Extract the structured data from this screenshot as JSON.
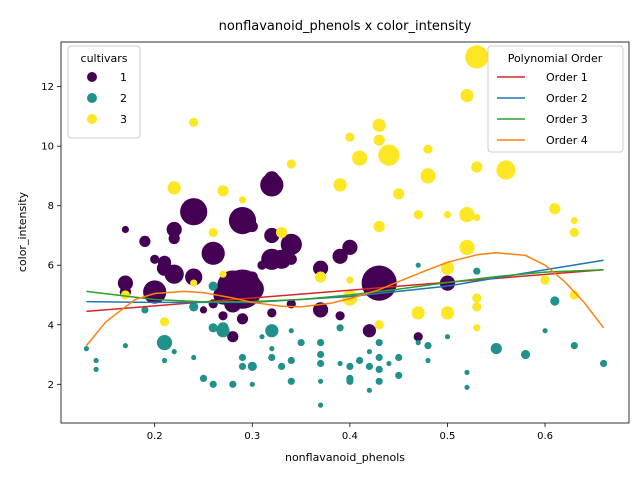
{
  "chart_data": {
    "type": "scatter",
    "title": "nonflavanoid_phenols x color_intensity",
    "xlabel": "nonflavanoid_phenols",
    "ylabel": "color_intensity",
    "xlim": [
      0.104,
      0.686
    ],
    "ylim": [
      0.7,
      13.5
    ],
    "x_ticks": [
      0.2,
      0.3,
      0.4,
      0.5,
      0.6
    ],
    "y_ticks": [
      2,
      4,
      6,
      8,
      10,
      12
    ],
    "grid": false,
    "size_encodes": "point magnitude",
    "cultivar_legend": {
      "title": "cultivars",
      "placement": "top-left",
      "entries": [
        {
          "label": "1",
          "color": "#440154"
        },
        {
          "label": "2",
          "color": "#21918c"
        },
        {
          "label": "3",
          "color": "#fde725"
        }
      ]
    },
    "poly_legend": {
      "title": "Polynomial Order",
      "placement": "top-right",
      "entries": [
        {
          "label": "Order 1",
          "color": "#d62728"
        },
        {
          "label": "Order 2",
          "color": "#1f77b4"
        },
        {
          "label": "Order 3",
          "color": "#2ca02c"
        },
        {
          "label": "Order 4",
          "color": "#ff7f0e"
        }
      ]
    },
    "series": [
      {
        "cultivar": "1",
        "color": "#440154",
        "points": [
          [
            0.17,
            7.2,
            2
          ],
          [
            0.19,
            6.8,
            4
          ],
          [
            0.17,
            5.4,
            6
          ],
          [
            0.17,
            5.1,
            4
          ],
          [
            0.2,
            5.1,
            10
          ],
          [
            0.2,
            6.2,
            3
          ],
          [
            0.21,
            6.1,
            5
          ],
          [
            0.21,
            5.9,
            6
          ],
          [
            0.22,
            5.7,
            8
          ],
          [
            0.22,
            7.2,
            6
          ],
          [
            0.22,
            6.9,
            4
          ],
          [
            0.24,
            7.8,
            12
          ],
          [
            0.24,
            5.6,
            7
          ],
          [
            0.25,
            4.5,
            2
          ],
          [
            0.26,
            6.4,
            10
          ],
          [
            0.26,
            4.7,
            3
          ],
          [
            0.27,
            4.3,
            3
          ],
          [
            0.27,
            5.0,
            8
          ],
          [
            0.28,
            4.7,
            7
          ],
          [
            0.28,
            3.6,
            4
          ],
          [
            0.28,
            5.3,
            14
          ],
          [
            0.29,
            7.5,
            12
          ],
          [
            0.29,
            5.5,
            6
          ],
          [
            0.29,
            5.2,
            18
          ],
          [
            0.3,
            5.2,
            10
          ],
          [
            0.3,
            5.6,
            4
          ],
          [
            0.29,
            4.2,
            4
          ],
          [
            0.3,
            7.3,
            4
          ],
          [
            0.31,
            6.0,
            3
          ],
          [
            0.32,
            8.7,
            10
          ],
          [
            0.32,
            8.9,
            6
          ],
          [
            0.32,
            7.0,
            6
          ],
          [
            0.32,
            6.2,
            9
          ],
          [
            0.33,
            6.2,
            8
          ],
          [
            0.34,
            6.7,
            9
          ],
          [
            0.34,
            6.2,
            4
          ],
          [
            0.34,
            4.7,
            3
          ],
          [
            0.32,
            4.4,
            3
          ],
          [
            0.37,
            4.5,
            6
          ],
          [
            0.37,
            5.9,
            6
          ],
          [
            0.39,
            6.3,
            6
          ],
          [
            0.4,
            6.6,
            6
          ],
          [
            0.39,
            4.3,
            3
          ],
          [
            0.42,
            3.8,
            5
          ],
          [
            0.43,
            5.4,
            16
          ],
          [
            0.47,
            3.6,
            3
          ],
          [
            0.5,
            5.4,
            6
          ]
        ]
      },
      {
        "cultivar": "2",
        "color": "#21918c",
        "points": [
          [
            0.13,
            3.2,
            1
          ],
          [
            0.14,
            2.8,
            1
          ],
          [
            0.14,
            2.5,
            1
          ],
          [
            0.17,
            3.3,
            1
          ],
          [
            0.19,
            4.5,
            2
          ],
          [
            0.21,
            3.4,
            6
          ],
          [
            0.21,
            2.8,
            1
          ],
          [
            0.22,
            3.1,
            1
          ],
          [
            0.24,
            4.6,
            3
          ],
          [
            0.24,
            2.9,
            1
          ],
          [
            0.25,
            2.2,
            2
          ],
          [
            0.26,
            2.0,
            2
          ],
          [
            0.26,
            3.9,
            3
          ],
          [
            0.26,
            5.3,
            3
          ],
          [
            0.27,
            3.9,
            4
          ],
          [
            0.27,
            3.8,
            5
          ],
          [
            0.28,
            2.0,
            2
          ],
          [
            0.29,
            2.9,
            2
          ],
          [
            0.29,
            2.6,
            2
          ],
          [
            0.3,
            2.6,
            3
          ],
          [
            0.3,
            2.0,
            1
          ],
          [
            0.31,
            3.6,
            1
          ],
          [
            0.32,
            3.8,
            5
          ],
          [
            0.32,
            3.2,
            1
          ],
          [
            0.32,
            2.9,
            2
          ],
          [
            0.33,
            2.6,
            2
          ],
          [
            0.34,
            2.8,
            2
          ],
          [
            0.34,
            2.1,
            2
          ],
          [
            0.34,
            3.8,
            1
          ],
          [
            0.35,
            3.4,
            2
          ],
          [
            0.37,
            3.4,
            2
          ],
          [
            0.37,
            3.0,
            2
          ],
          [
            0.37,
            2.7,
            2
          ],
          [
            0.37,
            2.1,
            1
          ],
          [
            0.37,
            1.3,
            1
          ],
          [
            0.39,
            3.9,
            2
          ],
          [
            0.39,
            2.7,
            1
          ],
          [
            0.4,
            2.6,
            2
          ],
          [
            0.4,
            2.2,
            2
          ],
          [
            0.4,
            2.1,
            2
          ],
          [
            0.41,
            2.8,
            2
          ],
          [
            0.42,
            3.1,
            1
          ],
          [
            0.42,
            2.6,
            2
          ],
          [
            0.42,
            1.8,
            1
          ],
          [
            0.43,
            3.4,
            2
          ],
          [
            0.43,
            2.9,
            2
          ],
          [
            0.43,
            2.5,
            2
          ],
          [
            0.43,
            2.1,
            2
          ],
          [
            0.44,
            2.7,
            1
          ],
          [
            0.45,
            2.9,
            2
          ],
          [
            0.45,
            2.3,
            2
          ],
          [
            0.47,
            3.4,
            1
          ],
          [
            0.47,
            6.0,
            1
          ],
          [
            0.48,
            3.3,
            2
          ],
          [
            0.48,
            2.8,
            1
          ],
          [
            0.5,
            3.6,
            1
          ],
          [
            0.52,
            2.4,
            1
          ],
          [
            0.52,
            1.9,
            1
          ],
          [
            0.53,
            5.8,
            2
          ],
          [
            0.55,
            3.2,
            4
          ],
          [
            0.58,
            3.0,
            3
          ],
          [
            0.6,
            3.8,
            1
          ],
          [
            0.61,
            4.8,
            3
          ],
          [
            0.63,
            3.3,
            2
          ],
          [
            0.66,
            2.7,
            2
          ]
        ]
      },
      {
        "cultivar": "3",
        "color": "#fde725",
        "points": [
          [
            0.17,
            5.0,
            3
          ],
          [
            0.21,
            4.1,
            3
          ],
          [
            0.22,
            8.6,
            5
          ],
          [
            0.24,
            10.8,
            3
          ],
          [
            0.24,
            5.4,
            2
          ],
          [
            0.26,
            7.1,
            3
          ],
          [
            0.27,
            8.5,
            4
          ],
          [
            0.27,
            5.7,
            2
          ],
          [
            0.29,
            8.2,
            2
          ],
          [
            0.33,
            7.1,
            4
          ],
          [
            0.34,
            9.4,
            3
          ],
          [
            0.37,
            5.6,
            4
          ],
          [
            0.39,
            8.7,
            5
          ],
          [
            0.4,
            10.3,
            3
          ],
          [
            0.4,
            5.5,
            2
          ],
          [
            0.4,
            5.0,
            3
          ],
          [
            0.4,
            4.9,
            6
          ],
          [
            0.41,
            9.6,
            6
          ],
          [
            0.43,
            10.7,
            5
          ],
          [
            0.43,
            10.2,
            4
          ],
          [
            0.43,
            7.3,
            4
          ],
          [
            0.43,
            4.0,
            3
          ],
          [
            0.44,
            9.7,
            9
          ],
          [
            0.45,
            8.4,
            4
          ],
          [
            0.47,
            7.7,
            3
          ],
          [
            0.47,
            4.4,
            5
          ],
          [
            0.48,
            9.9,
            3
          ],
          [
            0.48,
            9.0,
            6
          ],
          [
            0.5,
            7.7,
            2
          ],
          [
            0.5,
            5.9,
            5
          ],
          [
            0.5,
            4.4,
            5
          ],
          [
            0.52,
            11.7,
            5
          ],
          [
            0.52,
            7.7,
            6
          ],
          [
            0.52,
            6.6,
            6
          ],
          [
            0.53,
            13.0,
            10
          ],
          [
            0.53,
            9.3,
            4
          ],
          [
            0.53,
            7.6,
            2
          ],
          [
            0.53,
            4.9,
            3
          ],
          [
            0.53,
            4.6,
            3
          ],
          [
            0.53,
            3.9,
            2
          ],
          [
            0.56,
            9.2,
            8
          ],
          [
            0.6,
            5.5,
            3
          ],
          [
            0.61,
            7.9,
            4
          ],
          [
            0.63,
            7.5,
            2
          ],
          [
            0.63,
            7.1,
            3
          ],
          [
            0.63,
            5.0,
            3
          ]
        ]
      }
    ],
    "fits": [
      {
        "label": "Order 1",
        "color": "#d62728",
        "x": [
          0.13,
          0.66
        ],
        "y": [
          4.45,
          5.85
        ]
      },
      {
        "label": "Order 2",
        "color": "#1f77b4",
        "x": [
          0.13,
          0.2,
          0.3,
          0.4,
          0.5,
          0.6,
          0.66
        ],
        "y": [
          4.78,
          4.75,
          4.75,
          4.95,
          5.3,
          5.85,
          6.17
        ]
      },
      {
        "label": "Order 3",
        "color": "#2ca02c",
        "x": [
          0.13,
          0.2,
          0.25,
          0.3,
          0.35,
          0.4,
          0.45,
          0.5,
          0.55,
          0.6,
          0.66
        ],
        "y": [
          5.12,
          4.85,
          4.77,
          4.78,
          4.85,
          5.0,
          5.2,
          5.42,
          5.62,
          5.77,
          5.85
        ]
      },
      {
        "label": "Order 4",
        "color": "#ff7f0e",
        "x": [
          0.13,
          0.15,
          0.18,
          0.2,
          0.23,
          0.25,
          0.28,
          0.3,
          0.33,
          0.35,
          0.38,
          0.4,
          0.43,
          0.45,
          0.48,
          0.5,
          0.53,
          0.55,
          0.58,
          0.6,
          0.62,
          0.64,
          0.66
        ],
        "y": [
          3.3,
          4.1,
          4.85,
          5.05,
          5.12,
          5.08,
          4.9,
          4.75,
          4.62,
          4.6,
          4.72,
          4.88,
          5.18,
          5.45,
          5.85,
          6.1,
          6.35,
          6.42,
          6.33,
          6.0,
          5.45,
          4.75,
          3.9
        ]
      }
    ]
  }
}
